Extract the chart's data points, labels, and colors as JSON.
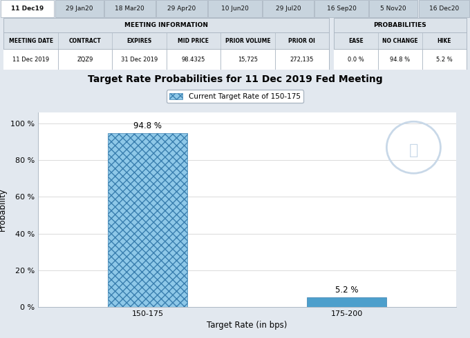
{
  "title": "Target Rate Probabilities for 11 Dec 2019 Fed Meeting",
  "legend_label": "Current Target Rate of 150-175",
  "xlabel": "Target Rate (in bps)",
  "ylabel": "Probability",
  "categories": [
    "150-175",
    "175-200"
  ],
  "values": [
    94.8,
    5.2
  ],
  "bar_color_hatched": "#7ab8d9",
  "bar_color_solid": "#4d9fcc",
  "hatch_pattern": "xxx",
  "hatch_edge_color": "#3a7faf",
  "ylim": [
    0,
    100
  ],
  "yticks": [
    0,
    20,
    40,
    60,
    80,
    100
  ],
  "ytick_labels": [
    "0 %",
    "20 %",
    "40 %",
    "60 %",
    "80 %",
    "100 %"
  ],
  "annotations": [
    "94.8 %",
    "5.2 %"
  ],
  "plot_bg_color": "#ffffff",
  "grid_color": "#d4d4d4",
  "tab_labels": [
    "11 Dec19",
    "29 Jan20",
    "18 Mar20",
    "29 Apr20",
    "10 Jun20",
    "29 Jul20",
    "16 Sep20",
    "5 Nov20",
    "16 Dec20"
  ],
  "tab_active": 0,
  "table_header1": [
    "MEETING DATE",
    "CONTRACT",
    "EXPIRES",
    "MID PRICE",
    "PRIOR VOLUME",
    "PRIOR OI"
  ],
  "table_data1": [
    "11 Dec 2019",
    "ZQZ9",
    "31 Dec 2019",
    "98.4325",
    "15,725",
    "272,135"
  ],
  "table_header2": [
    "EASE",
    "NO CHANGE",
    "HIKE"
  ],
  "table_data2": [
    "0.0 %",
    "94.8 %",
    "5.2 %"
  ],
  "section_title1": "MEETING INFORMATION",
  "section_title2": "PROBABILITIES",
  "title_fontsize": 10,
  "axis_fontsize": 8,
  "annotation_fontsize": 8.5,
  "outer_bg": "#e2e8ef",
  "table_bg": "#dce3ea",
  "row_bg": "#ffffff",
  "tab_active_color": "#ffffff",
  "tab_inactive_color": "#c8d4de",
  "border_color": "#adb8c4",
  "tab_border_color": "#adb8c4",
  "chart_area_bg": "#f0f4f8"
}
